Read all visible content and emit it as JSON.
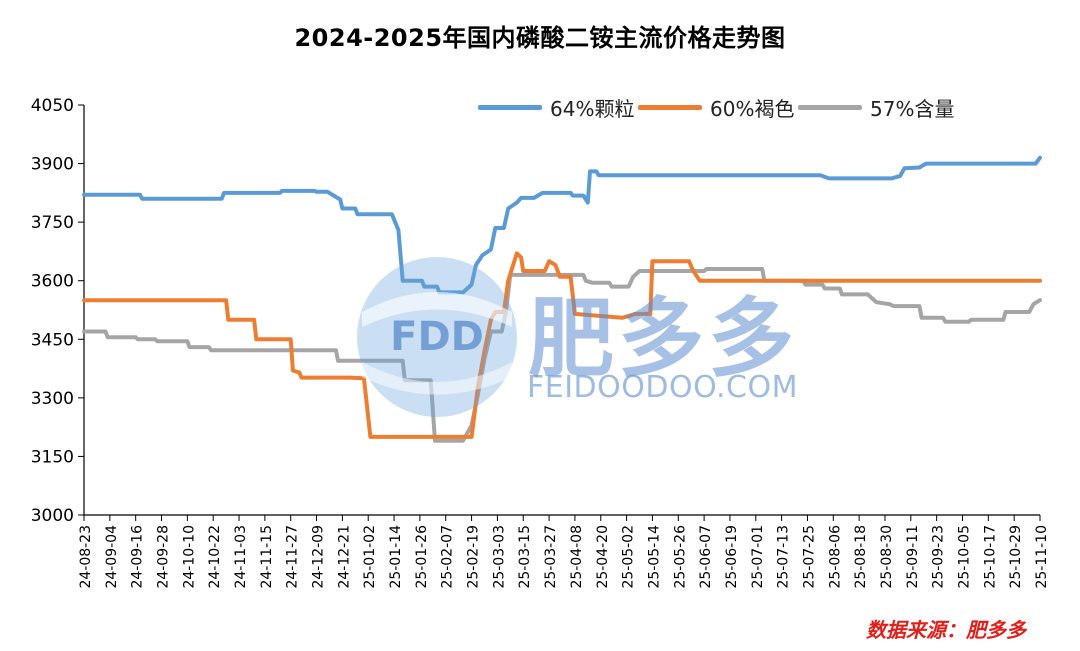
{
  "chart_data": {
    "type": "line",
    "title": "2024-2025年国内磷酸二铵主流价格走势图",
    "source_note": "数据来源：肥多多",
    "watermark": {
      "brand_cn": "肥多多",
      "brand_en": "FEIDOODOO.COM",
      "logo_text": "FDD"
    },
    "ylim": [
      3000,
      4050
    ],
    "yticks": [
      3000,
      3150,
      3300,
      3450,
      3600,
      3750,
      3900,
      4050
    ],
    "x_start": "2024-08-23",
    "x_end": "2025-11-10",
    "xticks": [
      "24-08-23",
      "24-09-04",
      "24-09-16",
      "24-09-28",
      "24-10-10",
      "24-10-22",
      "24-11-03",
      "24-11-15",
      "24-11-27",
      "24-12-09",
      "24-12-21",
      "25-01-02",
      "25-01-14",
      "25-01-26",
      "25-02-07",
      "25-02-19",
      "25-03-03",
      "25-03-15",
      "25-03-27",
      "25-04-08",
      "25-04-20",
      "25-05-02",
      "25-05-14",
      "25-05-26",
      "25-06-07",
      "25-06-19",
      "25-07-01",
      "25-07-13",
      "25-07-25",
      "25-08-06",
      "25-08-18",
      "25-08-30",
      "25-09-11",
      "25-09-23",
      "25-10-05",
      "25-10-17",
      "25-10-29",
      "25-11-10"
    ],
    "series": [
      {
        "name": "64%颗粒",
        "color": "#5b9bd5",
        "points": [
          [
            "2024-08-23",
            3820
          ],
          [
            "2024-09-18",
            3820
          ],
          [
            "2024-09-19",
            3810
          ],
          [
            "2024-10-26",
            3810
          ],
          [
            "2024-10-27",
            3825
          ],
          [
            "2024-11-22",
            3825
          ],
          [
            "2024-11-23",
            3830
          ],
          [
            "2024-12-08",
            3830
          ],
          [
            "2024-12-09",
            3828
          ],
          [
            "2024-12-14",
            3828
          ],
          [
            "2024-12-20",
            3808
          ],
          [
            "2024-12-21",
            3785
          ],
          [
            "2024-12-27",
            3785
          ],
          [
            "2024-12-28",
            3770
          ],
          [
            "2025-01-13",
            3770
          ],
          [
            "2025-01-16",
            3730
          ],
          [
            "2025-01-18",
            3600
          ],
          [
            "2025-01-27",
            3600
          ],
          [
            "2025-01-28",
            3585
          ],
          [
            "2025-02-03",
            3585
          ],
          [
            "2025-02-04",
            3570
          ],
          [
            "2025-02-15",
            3570
          ],
          [
            "2025-02-19",
            3590
          ],
          [
            "2025-02-21",
            3640
          ],
          [
            "2025-02-24",
            3665
          ],
          [
            "2025-02-28",
            3680
          ],
          [
            "2025-03-02",
            3735
          ],
          [
            "2025-03-06",
            3735
          ],
          [
            "2025-03-08",
            3785
          ],
          [
            "2025-03-12",
            3800
          ],
          [
            "2025-03-14",
            3812
          ],
          [
            "2025-03-20",
            3812
          ],
          [
            "2025-03-24",
            3825
          ],
          [
            "2025-04-06",
            3825
          ],
          [
            "2025-04-07",
            3818
          ],
          [
            "2025-04-12",
            3818
          ],
          [
            "2025-04-14",
            3800
          ],
          [
            "2025-04-15",
            3880
          ],
          [
            "2025-04-18",
            3880
          ],
          [
            "2025-04-19",
            3870
          ],
          [
            "2025-07-31",
            3870
          ],
          [
            "2025-08-04",
            3862
          ],
          [
            "2025-09-02",
            3862
          ],
          [
            "2025-09-06",
            3868
          ],
          [
            "2025-09-08",
            3888
          ],
          [
            "2025-09-15",
            3890
          ],
          [
            "2025-09-18",
            3900
          ],
          [
            "2025-11-08",
            3900
          ],
          [
            "2025-11-10",
            3915
          ]
        ]
      },
      {
        "name": "60%褐色",
        "color": "#ed7d31",
        "points": [
          [
            "2024-08-23",
            3550
          ],
          [
            "2024-10-28",
            3550
          ],
          [
            "2024-10-29",
            3500
          ],
          [
            "2024-11-10",
            3500
          ],
          [
            "2024-11-11",
            3450
          ],
          [
            "2024-11-27",
            3450
          ],
          [
            "2024-11-28",
            3370
          ],
          [
            "2024-12-01",
            3365
          ],
          [
            "2024-12-02",
            3352
          ],
          [
            "2024-12-24",
            3352
          ],
          [
            "2024-12-31",
            3350
          ],
          [
            "2025-01-03",
            3200
          ],
          [
            "2025-02-19",
            3200
          ],
          [
            "2025-02-22",
            3330
          ],
          [
            "2025-02-25",
            3420
          ],
          [
            "2025-02-28",
            3500
          ],
          [
            "2025-03-02",
            3520
          ],
          [
            "2025-03-06",
            3520
          ],
          [
            "2025-03-08",
            3600
          ],
          [
            "2025-03-12",
            3670
          ],
          [
            "2025-03-14",
            3660
          ],
          [
            "2025-03-15",
            3625
          ],
          [
            "2025-03-25",
            3625
          ],
          [
            "2025-03-27",
            3650
          ],
          [
            "2025-03-30",
            3640
          ],
          [
            "2025-04-01",
            3610
          ],
          [
            "2025-04-06",
            3610
          ],
          [
            "2025-04-08",
            3515
          ],
          [
            "2025-04-30",
            3505
          ],
          [
            "2025-05-03",
            3510
          ],
          [
            "2025-05-06",
            3515
          ],
          [
            "2025-05-13",
            3515
          ],
          [
            "2025-05-14",
            3650
          ],
          [
            "2025-05-31",
            3650
          ],
          [
            "2025-06-02",
            3625
          ],
          [
            "2025-06-05",
            3600
          ],
          [
            "2025-11-10",
            3600
          ]
        ]
      },
      {
        "name": "57%含量",
        "color": "#a5a5a5",
        "points": [
          [
            "2024-08-23",
            3470
          ],
          [
            "2024-09-02",
            3470
          ],
          [
            "2024-09-03",
            3455
          ],
          [
            "2024-09-16",
            3455
          ],
          [
            "2024-09-17",
            3450
          ],
          [
            "2024-09-25",
            3450
          ],
          [
            "2024-09-26",
            3445
          ],
          [
            "2024-10-10",
            3445
          ],
          [
            "2024-10-11",
            3430
          ],
          [
            "2024-10-20",
            3430
          ],
          [
            "2024-10-21",
            3422
          ],
          [
            "2024-12-18",
            3422
          ],
          [
            "2024-12-19",
            3395
          ],
          [
            "2025-01-18",
            3395
          ],
          [
            "2025-01-19",
            3345
          ],
          [
            "2025-01-31",
            3345
          ],
          [
            "2025-02-02",
            3190
          ],
          [
            "2025-02-15",
            3190
          ],
          [
            "2025-02-19",
            3230
          ],
          [
            "2025-02-22",
            3310
          ],
          [
            "2025-02-25",
            3400
          ],
          [
            "2025-02-28",
            3470
          ],
          [
            "2025-03-05",
            3470
          ],
          [
            "2025-03-07",
            3520
          ],
          [
            "2025-03-09",
            3615
          ],
          [
            "2025-04-12",
            3615
          ],
          [
            "2025-04-13",
            3600
          ],
          [
            "2025-04-16",
            3595
          ],
          [
            "2025-04-24",
            3595
          ],
          [
            "2025-04-25",
            3585
          ],
          [
            "2025-05-03",
            3585
          ],
          [
            "2025-05-05",
            3610
          ],
          [
            "2025-05-08",
            3625
          ],
          [
            "2025-06-07",
            3625
          ],
          [
            "2025-06-08",
            3630
          ],
          [
            "2025-07-04",
            3630
          ],
          [
            "2025-07-05",
            3600
          ],
          [
            "2025-07-23",
            3600
          ],
          [
            "2025-07-24",
            3590
          ],
          [
            "2025-08-01",
            3590
          ],
          [
            "2025-08-02",
            3580
          ],
          [
            "2025-08-09",
            3580
          ],
          [
            "2025-08-10",
            3565
          ],
          [
            "2025-08-22",
            3565
          ],
          [
            "2025-08-26",
            3545
          ],
          [
            "2025-09-01",
            3540
          ],
          [
            "2025-09-03",
            3535
          ],
          [
            "2025-09-15",
            3535
          ],
          [
            "2025-09-16",
            3505
          ],
          [
            "2025-09-26",
            3505
          ],
          [
            "2025-09-27",
            3495
          ],
          [
            "2025-10-08",
            3495
          ],
          [
            "2025-10-09",
            3500
          ],
          [
            "2025-10-24",
            3500
          ],
          [
            "2025-10-25",
            3520
          ],
          [
            "2025-11-05",
            3520
          ],
          [
            "2025-11-07",
            3540
          ],
          [
            "2025-11-10",
            3550
          ]
        ]
      }
    ]
  }
}
